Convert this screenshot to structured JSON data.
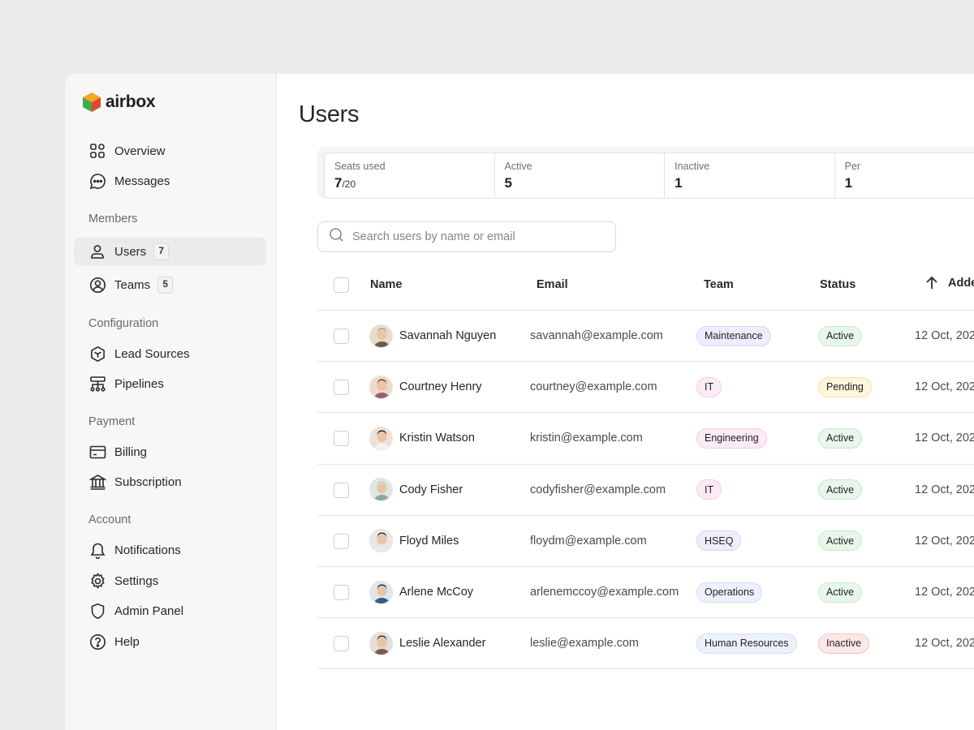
{
  "brand": {
    "name": "airbox"
  },
  "sidebar": {
    "top_items": [
      {
        "label": "Overview",
        "icon": "grid-icon"
      },
      {
        "label": "Messages",
        "icon": "chat-icon"
      }
    ],
    "sections": [
      {
        "label": "Members",
        "items": [
          {
            "label": "Users",
            "badge": "7",
            "icon": "user-icon",
            "active": true
          },
          {
            "label": "Teams",
            "badge": "5",
            "icon": "user-circle-icon"
          }
        ]
      },
      {
        "label": "Configuration",
        "items": [
          {
            "label": "Lead Sources",
            "icon": "cube-icon"
          },
          {
            "label": "Pipelines",
            "icon": "hierarchy-icon"
          }
        ]
      },
      {
        "label": "Payment",
        "items": [
          {
            "label": "Billing",
            "icon": "card-icon"
          },
          {
            "label": "Subscription",
            "icon": "bank-icon"
          }
        ]
      },
      {
        "label": "Account",
        "items": [
          {
            "label": "Notifications",
            "icon": "bell-icon"
          },
          {
            "label": "Settings",
            "icon": "gear-icon"
          },
          {
            "label": "Admin Panel",
            "icon": "shield-icon"
          },
          {
            "label": "Help",
            "icon": "help-icon"
          }
        ]
      }
    ]
  },
  "main": {
    "title": "Users",
    "stats": [
      {
        "label": "Seats used",
        "value": "7",
        "suffix": "/20"
      },
      {
        "label": "Active",
        "value": "5"
      },
      {
        "label": "Inactive",
        "value": "1"
      },
      {
        "label": "Per",
        "value": "1"
      }
    ],
    "search": {
      "placeholder": "Search users by name or email"
    },
    "table": {
      "headers": {
        "name": "Name",
        "email": "Email",
        "team": "Team",
        "status": "Status",
        "added": "Adde"
      },
      "rows": [
        {
          "name": "Savannah Nguyen",
          "email": "savannah@example.com",
          "team": "Maintenance",
          "status": "Active",
          "added": "12 Oct, 202"
        },
        {
          "name": "Courtney Henry",
          "email": "courtney@example.com",
          "team": "IT",
          "status": "Pending",
          "added": "12 Oct, 202"
        },
        {
          "name": "Kristin Watson",
          "email": "kristin@example.com",
          "team": "Engineering",
          "status": "Active",
          "added": "12 Oct, 202"
        },
        {
          "name": "Cody Fisher",
          "email": "codyfisher@example.com",
          "team": "IT",
          "status": "Active",
          "added": "12 Oct, 202"
        },
        {
          "name": "Floyd Miles",
          "email": "floydm@example.com",
          "team": "HSEQ",
          "status": "Active",
          "added": "12 Oct, 202"
        },
        {
          "name": "Arlene McCoy",
          "email": "arlenemccoy@example.com",
          "team": "Operations",
          "status": "Active",
          "added": "12 Oct, 202"
        },
        {
          "name": "Leslie Alexander",
          "email": "leslie@example.com",
          "team": "Human Resources",
          "status": "Inactive",
          "added": "12 Oct, 202"
        }
      ]
    }
  },
  "colors": {
    "team": {
      "Maintenance": [
        "#f1ecfb",
        "#ddd2f3"
      ],
      "IT": [
        "#fcebf4",
        "#f4cfe3"
      ],
      "Engineering": [
        "#fcebf4",
        "#f4cfe3"
      ],
      "HSEQ": [
        "#f1ecfb",
        "#ddd2f3"
      ],
      "Operations": [
        "#edf1fb",
        "#d3dcf2"
      ],
      "Human Resources": [
        "#edf1fb",
        "#d3dcf2"
      ]
    },
    "status": {
      "Active": [
        "#e8f7ea",
        "#c6e9cb"
      ],
      "Pending": [
        "#fdf5dc",
        "#f1e1a5"
      ],
      "Inactive": [
        "#fde8e8",
        "#f3c4c4"
      ]
    }
  }
}
